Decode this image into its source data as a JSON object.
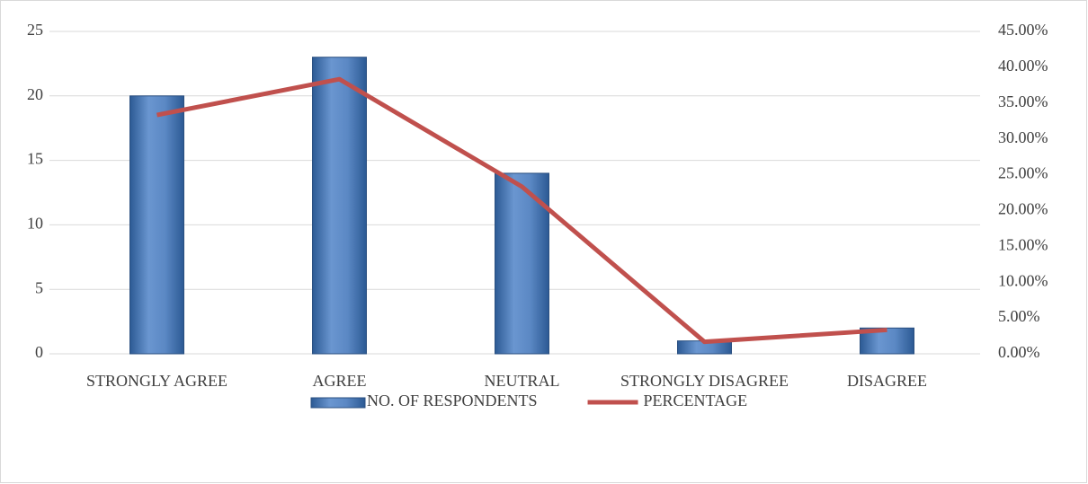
{
  "chart_data": {
    "type": "bar",
    "categories": [
      "STRONGLY AGREE",
      "AGREE",
      "NEUTRAL",
      "STRONGLY DISAGREE",
      "DISAGREE"
    ],
    "series": [
      {
        "name": "NO. OF RESPONDENTS",
        "type": "bar",
        "color": "#4f81bd",
        "values": [
          20,
          23,
          14,
          1,
          2
        ]
      },
      {
        "name": "PERCENTAGE",
        "type": "line",
        "axis": "y2",
        "color": "#c0504d",
        "values": [
          33.33,
          38.33,
          23.33,
          1.67,
          3.33
        ]
      }
    ],
    "ylim": [
      0,
      25
    ],
    "yticks": [
      0,
      5,
      10,
      15,
      20,
      25
    ],
    "y2lim": [
      0,
      45
    ],
    "y2ticks": [
      {
        "value": 0,
        "label": "0.00%"
      },
      {
        "value": 5,
        "label": "5.00%"
      },
      {
        "value": 10,
        "label": "10.00%"
      },
      {
        "value": 15,
        "label": "15.00%"
      },
      {
        "value": 20,
        "label": "20.00%"
      },
      {
        "value": 25,
        "label": "25.00%"
      },
      {
        "value": 30,
        "label": "30.00%"
      },
      {
        "value": 35,
        "label": "35.00%"
      },
      {
        "value": 40,
        "label": "40.00%"
      },
      {
        "value": 45,
        "label": "45.00%"
      }
    ],
    "grid": true,
    "legend": "bottom"
  }
}
